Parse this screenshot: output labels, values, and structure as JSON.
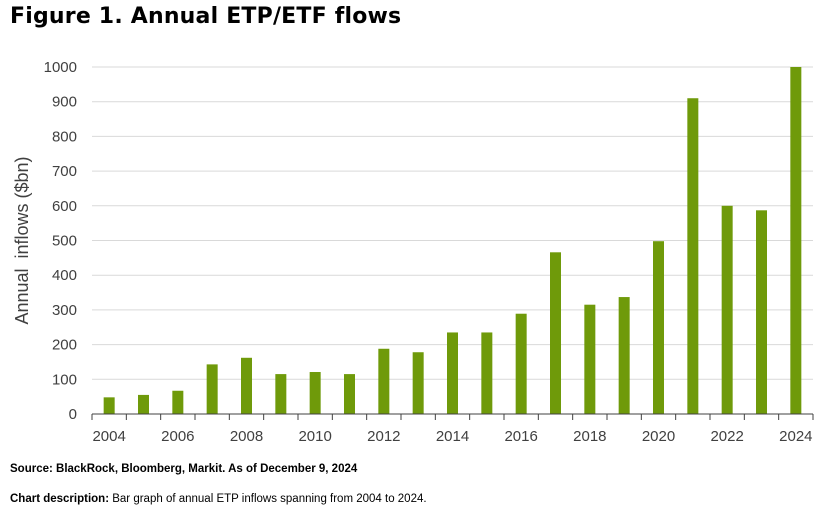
{
  "figure_title": "Figure 1. Annual ETP/ETF flows",
  "source_text": "Source: BlackRock, Bloomberg, Markit. As of December 9, 2024",
  "description_label": "Chart description:",
  "description_text": " Bar graph of annual ETP inflows spanning from 2004 to 2024.",
  "colors": {
    "bar": "#6f9a0a",
    "grid": "#d9d9d9",
    "axis": "#404040",
    "text": "#404040"
  },
  "chart_data": {
    "type": "bar",
    "title": "Figure 1. Annual ETP/ETF flows",
    "xlabel": "",
    "ylabel": "Annual  inflows ($bn)",
    "ylim": [
      0,
      1000
    ],
    "yticks": [
      0,
      100,
      200,
      300,
      400,
      500,
      600,
      700,
      800,
      900,
      1000
    ],
    "xtick_labels": [
      "2004",
      "2006",
      "2008",
      "2010",
      "2012",
      "2014",
      "2016",
      "2018",
      "2020",
      "2022",
      "2024"
    ],
    "categories": [
      "2004",
      "2005",
      "2006",
      "2007",
      "2008",
      "2009",
      "2010",
      "2011",
      "2012",
      "2013",
      "2014",
      "2015",
      "2016",
      "2017",
      "2018",
      "2019",
      "2020",
      "2021",
      "2022",
      "2023",
      "2024"
    ],
    "values": [
      48,
      55,
      67,
      143,
      162,
      115,
      121,
      115,
      188,
      178,
      235,
      235,
      289,
      466,
      315,
      337,
      498,
      910,
      600,
      587,
      1000
    ],
    "grid": true
  }
}
